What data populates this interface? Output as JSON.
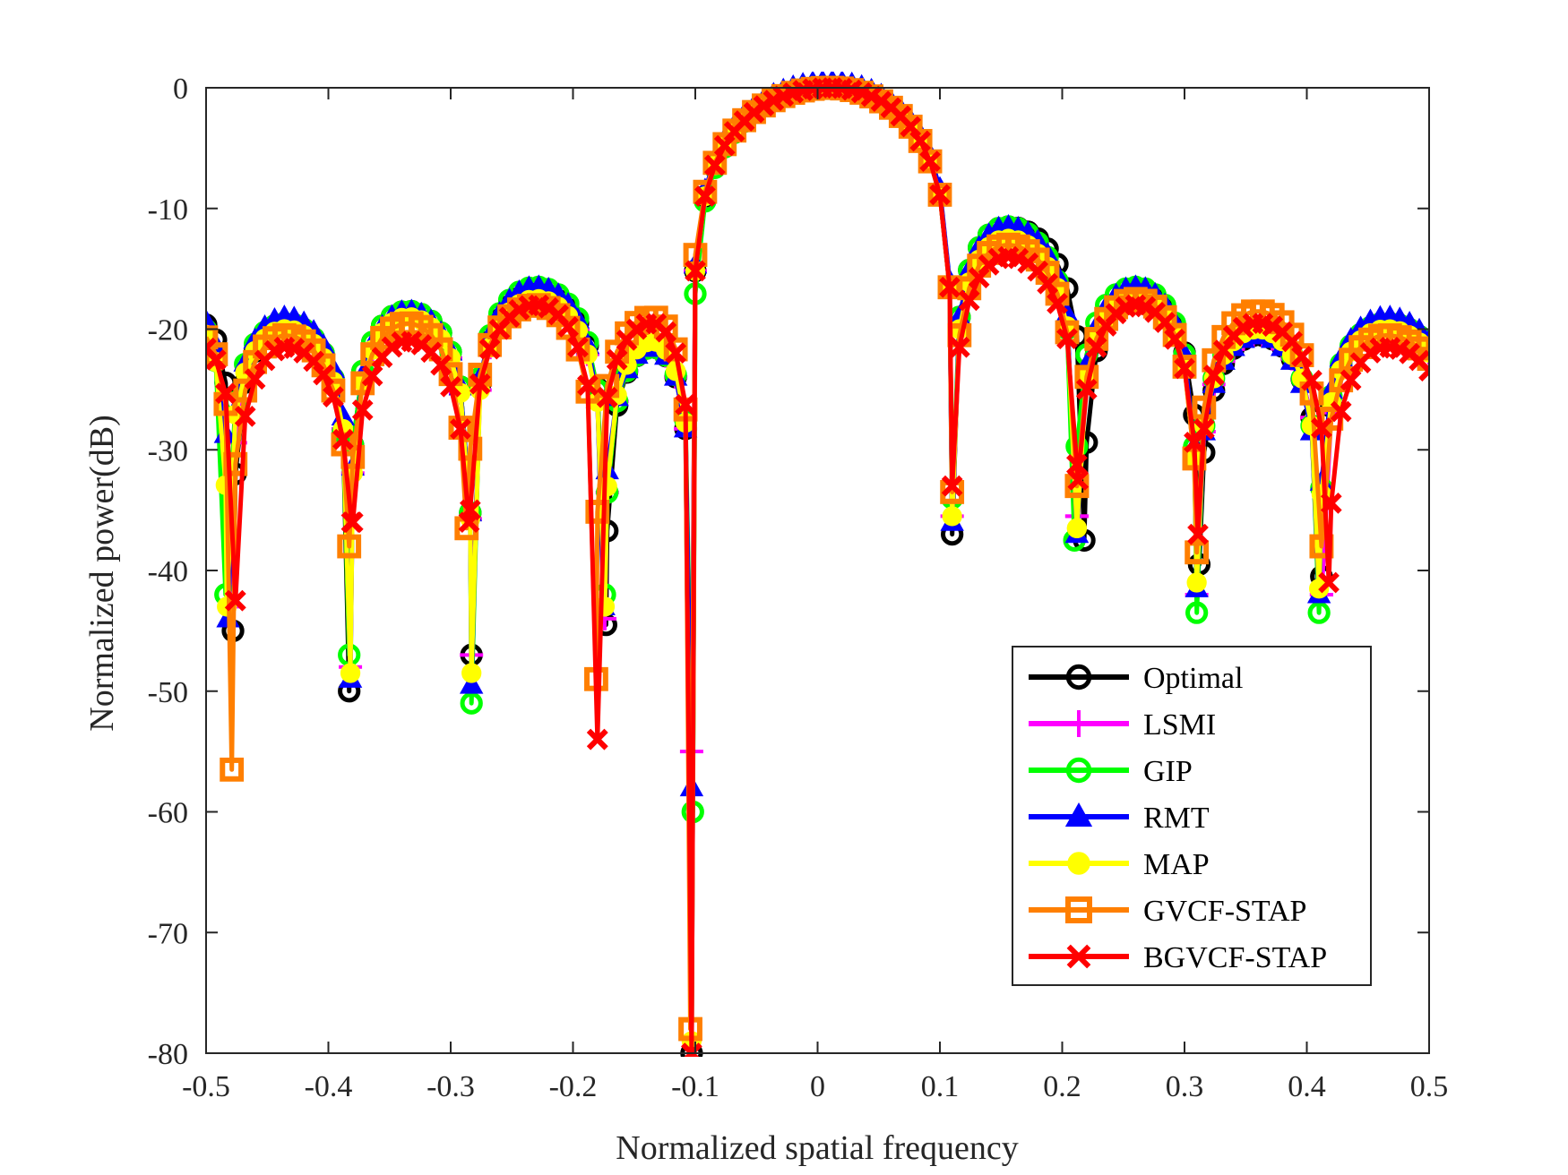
{
  "chart_data": {
    "type": "line",
    "title": "",
    "xlabel": "Normalized spatial frequency",
    "ylabel": "Normalized power(dB)",
    "xlim": [
      -0.5,
      0.5
    ],
    "ylim": [
      -80,
      0
    ],
    "xticks": [
      "-0.5",
      "-0.4",
      "-0.3",
      "-0.2",
      "-0.1",
      "0",
      "0.1",
      "0.2",
      "0.3",
      "0.4",
      "0.5"
    ],
    "yticks": [
      "0",
      "-10",
      "-20",
      "-30",
      "-40",
      "-50",
      "-60",
      "-70",
      "-80"
    ],
    "xtick_values": [
      -0.5,
      -0.4,
      -0.3,
      -0.2,
      -0.1,
      0,
      0.1,
      0.2,
      0.3,
      0.4,
      0.5
    ],
    "ytick_values": [
      0,
      -10,
      -20,
      -30,
      -40,
      -50,
      -60,
      -70,
      -80
    ],
    "legend_position": "lower-right",
    "grid": false,
    "beam": {
      "main_lobe_center": 0.01,
      "sidelobe_centers": [
        -0.435,
        -0.335,
        -0.23,
        -0.135,
        0.155,
        0.26,
        0.36,
        0.465
      ],
      "sample_step": 0.008
    },
    "series": [
      {
        "name": "Optimal",
        "color": "#000000",
        "marker": "circle",
        "peak_db": 0,
        "sidelobe_db": [
          -19.5,
          -18.5,
          -17,
          -21.5,
          -11.5,
          -17,
          -20.5,
          -19.5
        ],
        "nulls": [
          {
            "x": -0.478,
            "db": -45
          },
          {
            "x": -0.383,
            "db": -50
          },
          {
            "x": -0.283,
            "db": -47
          },
          {
            "x": -0.173,
            "db": -44.5
          },
          {
            "x": -0.103,
            "db": -80
          },
          {
            "x": 0.11,
            "db": -37
          },
          {
            "x": 0.218,
            "db": -37.5
          },
          {
            "x": 0.312,
            "db": -39.5
          },
          {
            "x": 0.412,
            "db": -40.5
          }
        ]
      },
      {
        "name": "LSMI",
        "color": "#ff00ff",
        "marker": "plus",
        "peak_db": 0,
        "sidelobe_db": [
          -20,
          -19,
          -17.5,
          -21.5,
          -12.5,
          -17.5,
          -20.5,
          -20
        ],
        "nulls": [
          {
            "x": -0.48,
            "db": -43
          },
          {
            "x": -0.382,
            "db": -48
          },
          {
            "x": -0.283,
            "db": -47
          },
          {
            "x": -0.174,
            "db": -44
          },
          {
            "x": -0.103,
            "db": -55
          },
          {
            "x": 0.11,
            "db": -35.5
          },
          {
            "x": 0.212,
            "db": -35.5
          },
          {
            "x": 0.31,
            "db": -42
          },
          {
            "x": 0.412,
            "db": -42
          }
        ]
      },
      {
        "name": "GIP",
        "color": "#00ff00",
        "marker": "circle",
        "peak_db": 0,
        "sidelobe_db": [
          -19.5,
          -18.5,
          -16.5,
          -21.5,
          -11.5,
          -16.5,
          -20,
          -19.5
        ],
        "nulls": [
          {
            "x": -0.484,
            "db": -42
          },
          {
            "x": -0.383,
            "db": -47
          },
          {
            "x": -0.283,
            "db": -51
          },
          {
            "x": -0.174,
            "db": -42
          },
          {
            "x": -0.102,
            "db": -60
          },
          {
            "x": 0.11,
            "db": -34
          },
          {
            "x": 0.21,
            "db": -37.5
          },
          {
            "x": 0.31,
            "db": -43.5
          },
          {
            "x": 0.41,
            "db": -43.5
          }
        ]
      },
      {
        "name": "RMT",
        "color": "#0000ff",
        "marker": "triangle",
        "peak_db": 0.5,
        "sidelobe_db": [
          -19,
          -18.5,
          -16.5,
          -21.5,
          -11.5,
          -16.5,
          -20.5,
          -19
        ],
        "nulls": [
          {
            "x": -0.482,
            "db": -44
          },
          {
            "x": -0.382,
            "db": -49
          },
          {
            "x": -0.283,
            "db": -49.5
          },
          {
            "x": -0.175,
            "db": -43
          },
          {
            "x": -0.103,
            "db": -58
          },
          {
            "x": 0.11,
            "db": -36
          },
          {
            "x": 0.212,
            "db": -37
          },
          {
            "x": 0.31,
            "db": -41.5
          },
          {
            "x": 0.41,
            "db": -42
          }
        ]
      },
      {
        "name": "MAP",
        "color": "#ffff00",
        "marker": "circle-filled",
        "peak_db": 0,
        "sidelobe_db": [
          -20,
          -19,
          -17.5,
          -21,
          -12.5,
          -17.5,
          -20,
          -20
        ],
        "nulls": [
          {
            "x": -0.483,
            "db": -43
          },
          {
            "x": -0.382,
            "db": -48.5
          },
          {
            "x": -0.283,
            "db": -48.5
          },
          {
            "x": -0.174,
            "db": -43
          },
          {
            "x": -0.103,
            "db": -79
          },
          {
            "x": 0.11,
            "db": -35.5
          },
          {
            "x": 0.212,
            "db": -36.5
          },
          {
            "x": 0.31,
            "db": -41
          },
          {
            "x": 0.41,
            "db": -41.5
          }
        ]
      },
      {
        "name": "GVCF-STAP",
        "color": "#ff7f00",
        "marker": "square",
        "peak_db": 0,
        "sidelobe_db": [
          -20.5,
          -19.5,
          -18,
          -19,
          -13,
          -17.5,
          -18.5,
          -20.5
        ],
        "nulls": [
          {
            "x": -0.479,
            "db": -56.5
          },
          {
            "x": -0.383,
            "db": -38
          },
          {
            "x": -0.287,
            "db": -36.5
          },
          {
            "x": -0.181,
            "db": -49
          },
          {
            "x": -0.104,
            "db": -78
          },
          {
            "x": 0.11,
            "db": -33.5
          },
          {
            "x": 0.212,
            "db": -33
          },
          {
            "x": 0.31,
            "db": -38.5
          },
          {
            "x": 0.412,
            "db": -38
          }
        ]
      },
      {
        "name": "BGVCF-STAP",
        "color": "#ff0000",
        "marker": "x",
        "peak_db": 0,
        "sidelobe_db": [
          -21.5,
          -21,
          -18,
          -19.5,
          -14,
          -18,
          -19.5,
          -21.5
        ],
        "nulls": [
          {
            "x": -0.476,
            "db": -42.5
          },
          {
            "x": -0.381,
            "db": -36
          },
          {
            "x": -0.285,
            "db": -36
          },
          {
            "x": -0.18,
            "db": -54
          },
          {
            "x": -0.103,
            "db": -80
          },
          {
            "x": 0.11,
            "db": -33
          },
          {
            "x": 0.213,
            "db": -32.5
          },
          {
            "x": 0.311,
            "db": -37
          },
          {
            "x": 0.418,
            "db": -41
          }
        ]
      }
    ]
  }
}
